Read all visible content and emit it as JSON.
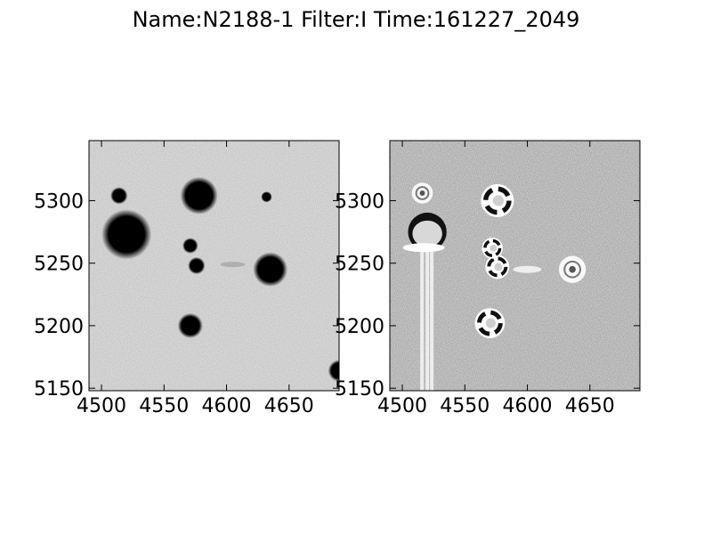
{
  "figure": {
    "title": "Name:N2188-1 Filter:I Time:161227_2049"
  },
  "panels": [
    {
      "name": "image-panel",
      "x_ticks": [
        "4500",
        "4550",
        "4600",
        "4650"
      ],
      "y_ticks": [
        "5300",
        "5250",
        "5200",
        "5150"
      ]
    },
    {
      "name": "residual-panel",
      "x_ticks": [
        "4500",
        "4550",
        "4600",
        "4650"
      ],
      "y_ticks": [
        "5300",
        "5250",
        "5200",
        "5150"
      ]
    }
  ],
  "axes": {
    "xlim": [
      4490,
      4690
    ],
    "ylim": [
      5148,
      5348
    ],
    "x_tick_values": [
      4500,
      4550,
      4600,
      4650
    ],
    "y_tick_values": [
      5300,
      5250,
      5200,
      5150
    ]
  },
  "stars_left": [
    {
      "x": 4520,
      "y": 5273,
      "r": 16
    },
    {
      "x": 4578,
      "y": 5304,
      "r": 12
    },
    {
      "x": 4635,
      "y": 5245,
      "r": 11
    },
    {
      "x": 4514,
      "y": 5304,
      "r": 5.5
    },
    {
      "x": 4571,
      "y": 5200,
      "r": 8
    },
    {
      "x": 4576,
      "y": 5248,
      "r": 5.5
    },
    {
      "x": 4571,
      "y": 5264,
      "r": 5
    },
    {
      "x": 4632,
      "y": 5303,
      "r": 3.5
    },
    {
      "x": 4690,
      "y": 5164,
      "r": 7
    }
  ],
  "stars_right": [
    {
      "x": 4520,
      "y": 5275,
      "r": 14,
      "kind": "big"
    },
    {
      "x": 4576,
      "y": 5300,
      "r": 11,
      "kind": "ring"
    },
    {
      "x": 4570,
      "y": 5202,
      "r": 10,
      "kind": "ring"
    },
    {
      "x": 4576,
      "y": 5247,
      "r": 8,
      "kind": "ring"
    },
    {
      "x": 4572,
      "y": 5262,
      "r": 7,
      "kind": "ring"
    },
    {
      "x": 4636,
      "y": 5245,
      "r": 9,
      "kind": "faint"
    },
    {
      "x": 4516,
      "y": 5306,
      "r": 7,
      "kind": "faint"
    }
  ]
}
